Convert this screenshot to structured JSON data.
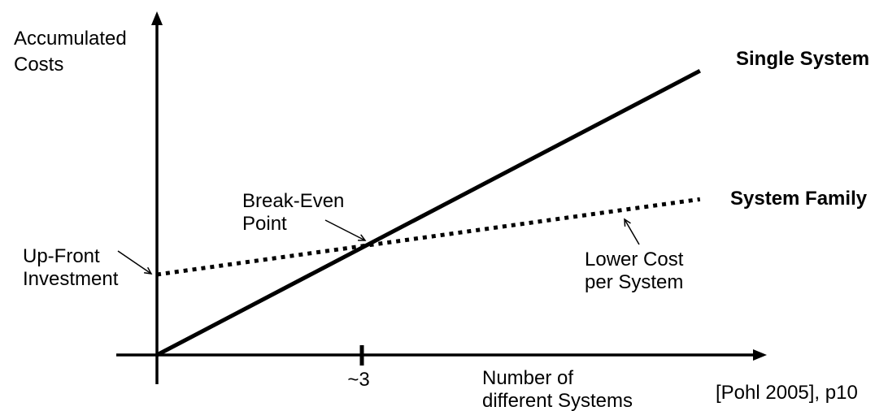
{
  "chart_data": {
    "type": "line",
    "ylabel": "Accumulated\nCosts",
    "xlabel": "Number of\ndifferent Systems",
    "x_range": [
      0,
      8.8
    ],
    "grid": false,
    "legend_position": "labels-at-right-line-ends",
    "x_ticks": [
      {
        "x": 3,
        "label": "~3",
        "approximate": true
      }
    ],
    "series": [
      {
        "name": "Single System",
        "style": "solid",
        "intercept": 0,
        "slope": 1,
        "x_start": 0,
        "x_end": 7.95
      },
      {
        "name": "System Family",
        "style": "dotted",
        "intercept": 2.25,
        "slope": 0.265,
        "x_start": 0,
        "x_end": 7.95
      }
    ],
    "break_even": {
      "x": 3
    },
    "annotations": [
      {
        "id": "break-even",
        "text": "Break-Even\nPoint",
        "target": "intersection-of-lines"
      },
      {
        "id": "up-front",
        "text": "Up-Front\nInvestment",
        "target": "system-family-intercept"
      },
      {
        "id": "lower-cost",
        "text": "Lower Cost\nper System",
        "target": "system-family-line"
      }
    ]
  },
  "citation": "[Pohl 2005], p10",
  "colors": {
    "ink": "#000000",
    "background": "#ffffff"
  }
}
